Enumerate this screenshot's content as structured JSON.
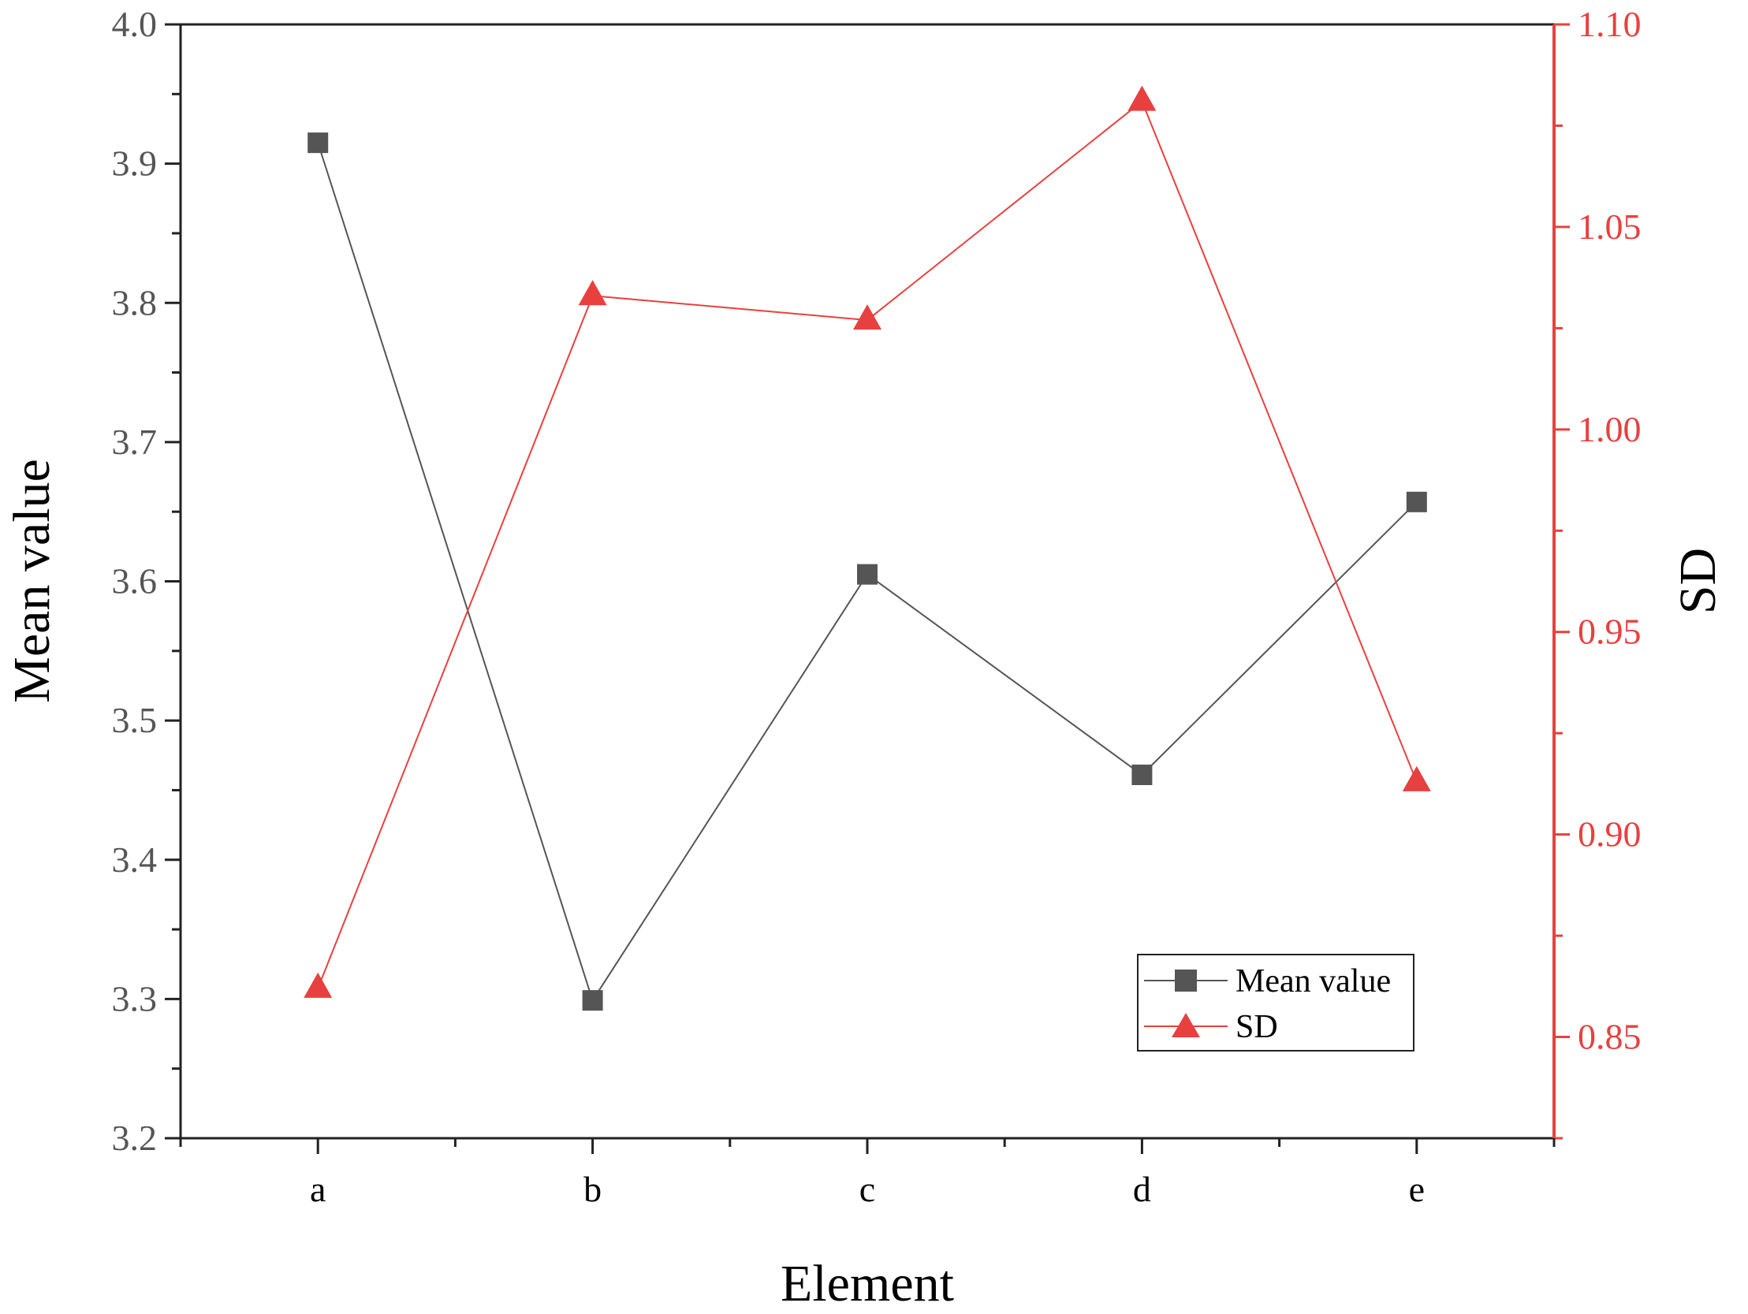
{
  "chart_data": {
    "type": "line",
    "categories": [
      "a",
      "b",
      "c",
      "d",
      "e"
    ],
    "xlabel": "Element",
    "y_left": {
      "label": "Mean value",
      "range": [
        3.2,
        4.0
      ],
      "ticks": [
        "3.2",
        "3.3",
        "3.4",
        "3.5",
        "3.6",
        "3.7",
        "3.8",
        "3.9",
        "4.0"
      ],
      "color": "#555555"
    },
    "y_right": {
      "label": "SD",
      "range": [
        0.825,
        1.1
      ],
      "ticks": [
        "0.85",
        "0.90",
        "0.95",
        "1.00",
        "1.05",
        "1.10"
      ],
      "color": "#e8403e"
    },
    "series": [
      {
        "name": "Mean value",
        "axis": "left",
        "marker": "square",
        "color": "#555555",
        "values": [
          3.915,
          3.299,
          3.605,
          3.461,
          3.657
        ]
      },
      {
        "name": "SD",
        "axis": "right",
        "marker": "triangle",
        "color": "#e8403e",
        "values": [
          0.862,
          1.033,
          1.027,
          1.081,
          0.913
        ]
      }
    ],
    "legend": {
      "position": "bottom-right"
    },
    "grid": false
  }
}
